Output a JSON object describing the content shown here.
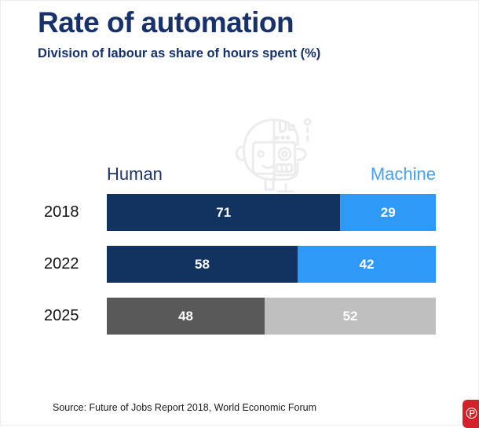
{
  "page": {
    "title": "Rate of automation",
    "subtitle": "Division of labour as share of hours spent (%)",
    "source": "Source: Future of Jobs Report 2018, World Economic Forum"
  },
  "legend": {
    "human": "Human",
    "machine": "Machine"
  },
  "colors": {
    "title_navy": "#16316b",
    "human_bar_navy": "#12335f",
    "machine_bar_blue": "#2f99f7",
    "machine_label_blue": "#47a0f1",
    "neutral_dark_gray": "#595959",
    "neutral_light_gray": "#bfbfbf",
    "watermark_gray": "#ececec",
    "pinterest_red": "#d3222a",
    "value_label_white": "#ffffff"
  },
  "icons": {
    "watermark": "half-human-half-robot-head-icon",
    "pinterest": "pinterest-save-icon",
    "pinterest_glyph": "℗"
  },
  "chart_data": {
    "type": "bar",
    "variant": "horizontal-stacked",
    "title": "Rate of automation",
    "subtitle": "Division of labour as share of hours spent (%)",
    "categories": [
      "2018",
      "2022",
      "2025"
    ],
    "series": [
      {
        "name": "Human",
        "values": [
          71,
          58,
          48
        ]
      },
      {
        "name": "Machine",
        "values": [
          29,
          42,
          52
        ]
      }
    ],
    "rows": [
      {
        "year": "2018",
        "human": 71,
        "machine": 29,
        "human_color": "#12335f",
        "machine_color": "#2f99f7"
      },
      {
        "year": "2022",
        "human": 58,
        "machine": 42,
        "human_color": "#12335f",
        "machine_color": "#2f99f7"
      },
      {
        "year": "2025",
        "human": 48,
        "machine": 52,
        "human_color": "#595959",
        "machine_color": "#bfbfbf"
      }
    ],
    "xlabel": "",
    "ylabel": "",
    "xlim": [
      0,
      100
    ],
    "unit": "%",
    "value_labels": true,
    "legend_position": "top",
    "grid": false
  }
}
